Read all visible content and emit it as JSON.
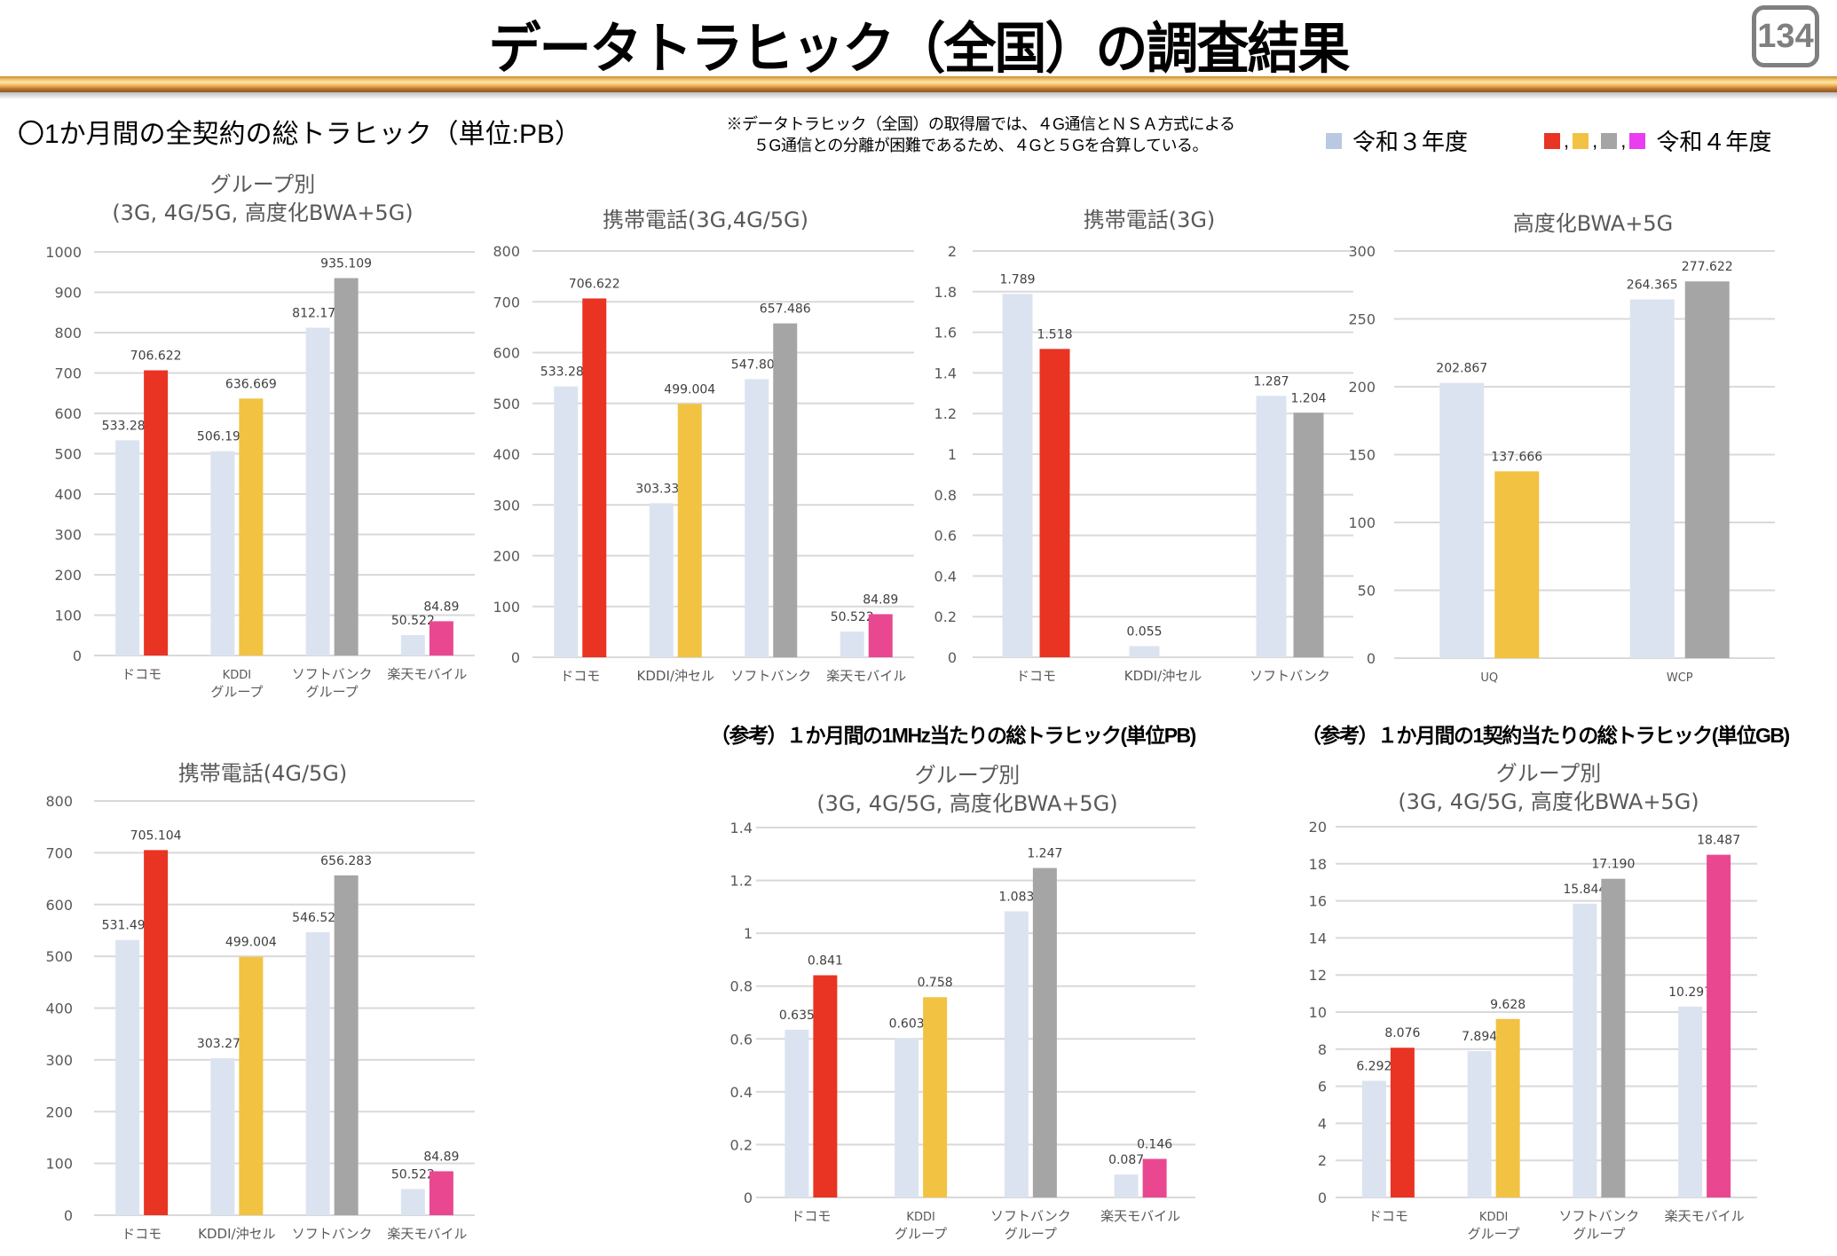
{
  "header": {
    "title": "データトラヒック（全国）の調査結果",
    "page_number": "134"
  },
  "section_heading": "〇1か月間の全契約の総トラヒック（単位:PB）",
  "note_lines": [
    "※データトラヒック（全国）の取得層では、４G通信とＮＳＡ方式による",
    "５G通信との分離が困難であるため、４Gと５Gを合算している。"
  ],
  "legend": {
    "prev_year_label": "令和３年度",
    "curr_year_label": "令和４年度",
    "prev_year_color": "#b9c9e3",
    "curr_year_colors": [
      "#e93323",
      "#f2c242",
      "#a5a5a5",
      "#ea3df0"
    ]
  },
  "reference_headings": {
    "per_mhz": "（参考）１か月間の1MHz当たりの総トラヒック(単位PB)",
    "per_contract": "（参考）１か月間の1契約当たりの総トラヒック(単位GB)"
  },
  "colors": {
    "prev": "#dce3f0",
    "docomo": "#e93323",
    "kddi": "#f2c242",
    "softbank": "#a5a5a5",
    "rakuten": "#e94891",
    "grid": "#d9d9d9",
    "label": "#404040",
    "axis": "#595959"
  },
  "chart_data": [
    {
      "id": "group",
      "type": "bar",
      "title_lines": [
        "グループ別",
        "(3G, 4G/5G, 高度化BWA+5G)"
      ],
      "categories": [
        "ドコモ",
        "KDDI\nグループ",
        "ソフトバンク\nグループ",
        "楽天モバイル"
      ],
      "series": [
        {
          "name": "令和３年度",
          "values": [
            533.282,
            506.198,
            812.174,
            50.522
          ],
          "labels": [
            "533.282",
            "506.198",
            "812.174",
            "50.522"
          ]
        },
        {
          "name": "令和４年度",
          "values": [
            706.622,
            636.669,
            935.109,
            84.89
          ],
          "labels": [
            "706.622",
            "636.669",
            "935.109",
            "84.89"
          ],
          "colors": [
            "docomo",
            "kddi",
            "softbank",
            "rakuten"
          ]
        }
      ],
      "yticks": [
        "0",
        "100",
        "200",
        "300",
        "400",
        "500",
        "600",
        "700",
        "800",
        "900",
        "1000"
      ],
      "ylim": [
        0,
        1000
      ],
      "unit": "PB",
      "grid": true
    },
    {
      "id": "mobile-3g-4g5g",
      "type": "bar",
      "title_lines": [
        "携帯電話(3G,4G/5G)"
      ],
      "categories": [
        "ドコモ",
        "KDDI/沖セル",
        "ソフトバンク",
        "楽天モバイル"
      ],
      "series": [
        {
          "name": "令和３年度",
          "values": [
            533.282,
            303.331,
            547.809,
            50.522
          ],
          "labels": [
            "533.282",
            "303.331",
            "547.809",
            "50.522"
          ]
        },
        {
          "name": "令和４年度",
          "values": [
            706.622,
            499.004,
            657.486,
            84.89
          ],
          "labels": [
            "706.622",
            "499.004",
            "657.486",
            "84.89"
          ],
          "colors": [
            "docomo",
            "kddi",
            "softbank",
            "rakuten"
          ]
        }
      ],
      "yticks": [
        "0",
        "100",
        "200",
        "300",
        "400",
        "500",
        "600",
        "700",
        "800"
      ],
      "ylim": [
        0,
        800
      ],
      "unit": "PB",
      "grid": true
    },
    {
      "id": "mobile-3g",
      "type": "bar",
      "title_lines": [
        "携帯電話(3G)"
      ],
      "categories": [
        "ドコモ",
        "KDDI/沖セル",
        "ソフトバンク"
      ],
      "series": [
        {
          "name": "令和３年度",
          "values": [
            1.789,
            0.055,
            1.287
          ],
          "labels": [
            "1.789",
            "0.055",
            "1.287"
          ]
        },
        {
          "name": "令和４年度",
          "values": [
            1.518,
            null,
            1.204
          ],
          "labels": [
            "1.518",
            "",
            "1.204"
          ],
          "colors": [
            "docomo",
            "kddi",
            "softbank"
          ]
        }
      ],
      "yticks": [
        "0",
        "0.2",
        "0.4",
        "0.6",
        "0.8",
        "1",
        "1.2",
        "1.4",
        "1.6",
        "1.8",
        "2"
      ],
      "ylim": [
        0,
        2
      ],
      "unit": "PB",
      "grid": true
    },
    {
      "id": "bwa-5g",
      "type": "bar",
      "title_lines": [
        "高度化BWA+5G"
      ],
      "categories": [
        "UQ",
        "WCP"
      ],
      "series": [
        {
          "name": "令和３年度",
          "values": [
            202.867,
            264.365
          ],
          "labels": [
            "202.867",
            "264.365"
          ]
        },
        {
          "name": "令和４年度",
          "values": [
            137.666,
            277.622
          ],
          "labels": [
            "137.666",
            "277.622"
          ],
          "colors": [
            "kddi",
            "softbank"
          ]
        }
      ],
      "yticks": [
        "0",
        "50",
        "100",
        "150",
        "200",
        "250",
        "300"
      ],
      "ylim": [
        0,
        300
      ],
      "unit": "PB",
      "grid": true
    },
    {
      "id": "mobile-4g5g",
      "type": "bar",
      "title_lines": [
        "携帯電話(4G/5G)"
      ],
      "categories": [
        "ドコモ",
        "KDDI/沖セル",
        "ソフトバンク",
        "楽天モバイル"
      ],
      "series": [
        {
          "name": "令和３年度",
          "values": [
            531.493,
            303.276,
            546.522,
            50.522
          ],
          "labels": [
            "531.493",
            "303.276",
            "546.522",
            "50.522"
          ]
        },
        {
          "name": "令和４年度",
          "values": [
            705.104,
            499.004,
            656.283,
            84.89
          ],
          "labels": [
            "705.104",
            "499.004",
            "656.283",
            "84.89"
          ],
          "colors": [
            "docomo",
            "kddi",
            "softbank",
            "rakuten"
          ]
        }
      ],
      "yticks": [
        "0",
        "100",
        "200",
        "300",
        "400",
        "500",
        "600",
        "700",
        "800"
      ],
      "ylim": [
        0,
        800
      ],
      "unit": "PB",
      "grid": true
    },
    {
      "id": "per-mhz",
      "type": "bar",
      "title_lines": [
        "グループ別",
        "(3G, 4G/5G, 高度化BWA+5G)"
      ],
      "categories": [
        "ドコモ",
        "KDDI\nグループ",
        "ソフトバンク\nグループ",
        "楽天モバイル"
      ],
      "series": [
        {
          "name": "令和３年度",
          "values": [
            0.635,
            0.603,
            1.083,
            0.087
          ],
          "labels": [
            "0.635",
            "0.603",
            "1.083",
            "0.087"
          ]
        },
        {
          "name": "令和４年度",
          "values": [
            0.841,
            0.758,
            1.247,
            0.146
          ],
          "labels": [
            "0.841",
            "0.758",
            "1.247",
            "0.146"
          ],
          "colors": [
            "docomo",
            "kddi",
            "softbank",
            "rakuten"
          ]
        }
      ],
      "yticks": [
        "0",
        "0.2",
        "0.4",
        "0.6",
        "0.8",
        "1",
        "1.2",
        "1.4"
      ],
      "ylim": [
        0,
        1.4
      ],
      "unit": "PB",
      "grid": true
    },
    {
      "id": "per-contract",
      "type": "bar",
      "title_lines": [
        "グループ別",
        "(3G, 4G/5G, 高度化BWA+5G)"
      ],
      "categories": [
        "ドコモ",
        "KDDI\nグループ",
        "ソフトバンク\nグループ",
        "楽天モバイル"
      ],
      "series": [
        {
          "name": "令和３年度",
          "values": [
            6.292,
            7.894,
            15.844,
            10.297
          ],
          "labels": [
            "6.292",
            "7.894",
            "15.844",
            "10.297"
          ]
        },
        {
          "name": "令和４年度",
          "values": [
            8.076,
            9.628,
            17.19,
            18.487
          ],
          "labels": [
            "8.076",
            "9.628",
            "17.190",
            "18.487"
          ],
          "colors": [
            "docomo",
            "kddi",
            "softbank",
            "rakuten"
          ]
        }
      ],
      "yticks": [
        "0",
        "2",
        "4",
        "6",
        "8",
        "10",
        "12",
        "14",
        "16",
        "18",
        "20"
      ],
      "ylim": [
        0,
        20
      ],
      "unit": "GB",
      "grid": true
    }
  ]
}
